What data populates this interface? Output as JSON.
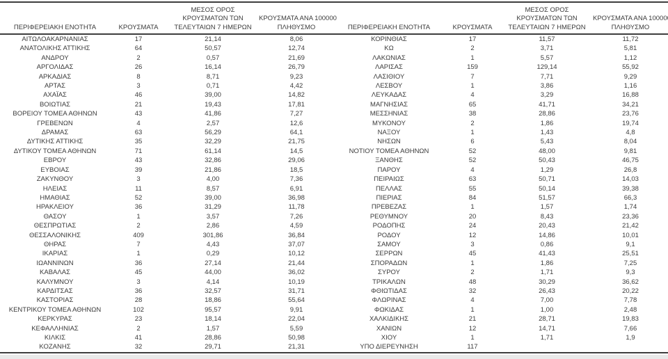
{
  "page": {
    "background": "#ffffff",
    "text_color": "#3b3b3b",
    "rule_color": "#3d3d3d",
    "bottom_strip_color": "#e9e9e9"
  },
  "columns": [
    {
      "id": "region",
      "lines": [
        "ΠΕΡΙΦΕΡΕΙΑΚΗ ΕΝΟΤΗΤΑ"
      ]
    },
    {
      "id": "cases",
      "lines": [
        "ΚΡΟΥΣΜΑΤΑ"
      ]
    },
    {
      "id": "avg7",
      "lines": [
        "ΜΕΣΟΣ ΟΡΟΣ",
        "ΚΡΟΥΣΜΑΤΩΝ ΤΩΝ",
        "ΤΕΛΕΥΤΑΙΩΝ 7 ΗΜΕΡΩΝ"
      ]
    },
    {
      "id": "per100k",
      "lines": [
        "ΚΡΟΥΣΜΑΤΑ ΑΝΑ 100000",
        "ΠΛΗΘΥΣΜΟ"
      ]
    }
  ],
  "tables": [
    {
      "name": "left",
      "rows": [
        [
          "ΑΙΤΩΛΟΑΚΑΡΝΑΝΙΑΣ",
          "17",
          "21,14",
          "8,06"
        ],
        [
          "ΑΝΑΤΟΛΙΚΗΣ ΑΤΤΙΚΗΣ",
          "64",
          "50,57",
          "12,74"
        ],
        [
          "ΑΝΔΡΟΥ",
          "2",
          "0,57",
          "21,69"
        ],
        [
          "ΑΡΓΟΛΙΔΑΣ",
          "26",
          "16,14",
          "26,79"
        ],
        [
          "ΑΡΚΑΔΙΑΣ",
          "8",
          "8,71",
          "9,23"
        ],
        [
          "ΑΡΤΑΣ",
          "3",
          "0,71",
          "4,42"
        ],
        [
          "ΑΧΑΪΑΣ",
          "46",
          "39,00",
          "14,82"
        ],
        [
          "ΒΟΙΩΤΙΑΣ",
          "21",
          "19,43",
          "17,81"
        ],
        [
          "ΒΟΡΕΙΟΥ ΤΟΜΕΑ ΑΘΗΝΩΝ",
          "43",
          "41,86",
          "7,27"
        ],
        [
          "ΓΡΕΒΕΝΩΝ",
          "4",
          "2,57",
          "12,6"
        ],
        [
          "ΔΡΑΜΑΣ",
          "63",
          "56,29",
          "64,1"
        ],
        [
          "ΔΥΤΙΚΗΣ ΑΤΤΙΚΗΣ",
          "35",
          "32,29",
          "21,75"
        ],
        [
          "ΔΥΤΙΚΟΥ ΤΟΜΕΑ ΑΘΗΝΩΝ",
          "71",
          "61,14",
          "14,5"
        ],
        [
          "ΕΒΡΟΥ",
          "43",
          "32,86",
          "29,06"
        ],
        [
          "ΕΥΒΟΙΑΣ",
          "39",
          "21,86",
          "18,5"
        ],
        [
          "ΖΑΚΥΝΘΟΥ",
          "3",
          "4,00",
          "7,36"
        ],
        [
          "ΗΛΕΙΑΣ",
          "11",
          "8,57",
          "6,91"
        ],
        [
          "ΗΜΑΘΙΑΣ",
          "52",
          "39,00",
          "36,98"
        ],
        [
          "ΗΡΑΚΛΕΙΟΥ",
          "36",
          "31,29",
          "11,78"
        ],
        [
          "ΘΑΣΟΥ",
          "1",
          "3,57",
          "7,26"
        ],
        [
          "ΘΕΣΠΡΩΤΙΑΣ",
          "2",
          "2,86",
          "4,59"
        ],
        [
          "ΘΕΣΣΑΛΟΝΙΚΗΣ",
          "409",
          "301,86",
          "36,84"
        ],
        [
          "ΘΗΡΑΣ",
          "7",
          "4,43",
          "37,07"
        ],
        [
          "ΙΚΑΡΙΑΣ",
          "1",
          "0,29",
          "10,12"
        ],
        [
          "ΙΩΑΝΝΙΝΩΝ",
          "36",
          "27,14",
          "21,44"
        ],
        [
          "ΚΑΒΑΛΑΣ",
          "45",
          "44,00",
          "36,02"
        ],
        [
          "ΚΑΛΥΜΝΟΥ",
          "3",
          "4,14",
          "10,19"
        ],
        [
          "ΚΑΡΔΙΤΣΑΣ",
          "36",
          "32,57",
          "31,71"
        ],
        [
          "ΚΑΣΤΟΡΙΑΣ",
          "28",
          "18,86",
          "55,64"
        ],
        [
          "ΚΕΝΤΡΙΚΟΥ ΤΟΜΕΑ ΑΘΗΝΩΝ",
          "102",
          "95,57",
          "9,91"
        ],
        [
          "ΚΕΡΚΥΡΑΣ",
          "23",
          "18,14",
          "22,04"
        ],
        [
          "ΚΕΦΑΛΛΗΝΙΑΣ",
          "2",
          "1,57",
          "5,59"
        ],
        [
          "ΚΙΛΚΙΣ",
          "41",
          "28,86",
          "50,98"
        ],
        [
          "ΚΟΖΑΝΗΣ",
          "32",
          "29,71",
          "21,31"
        ]
      ]
    },
    {
      "name": "right",
      "rows": [
        [
          "ΚΟΡΙΝΘΙΑΣ",
          "17",
          "11,57",
          "11,72"
        ],
        [
          "ΚΩ",
          "2",
          "3,71",
          "5,81"
        ],
        [
          "ΛΑΚΩΝΙΑΣ",
          "1",
          "5,57",
          "1,12"
        ],
        [
          "ΛΑΡΙΣΑΣ",
          "159",
          "129,14",
          "55,92"
        ],
        [
          "ΛΑΣΙΘΙΟΥ",
          "7",
          "7,71",
          "9,29"
        ],
        [
          "ΛΕΣΒΟΥ",
          "1",
          "3,86",
          "1,16"
        ],
        [
          "ΛΕΥΚΑΔΑΣ",
          "4",
          "3,29",
          "16,88"
        ],
        [
          "ΜΑΓΝΗΣΙΑΣ",
          "65",
          "41,71",
          "34,21"
        ],
        [
          "ΜΕΣΣΗΝΙΑΣ",
          "38",
          "28,86",
          "23,76"
        ],
        [
          "ΜΥΚΟΝΟΥ",
          "2",
          "1,86",
          "19,74"
        ],
        [
          "ΝΑΞΟΥ",
          "1",
          "1,43",
          "4,8"
        ],
        [
          "ΝΗΣΩΝ",
          "6",
          "5,43",
          "8,04"
        ],
        [
          "ΝΟΤΙΟΥ ΤΟΜΕΑ ΑΘΗΝΩΝ",
          "52",
          "48,00",
          "9,81"
        ],
        [
          "ΞΑΝΘΗΣ",
          "52",
          "50,43",
          "46,75"
        ],
        [
          "ΠΑΡΟΥ",
          "4",
          "1,29",
          "26,8"
        ],
        [
          "ΠΕΙΡΑΙΩΣ",
          "63",
          "50,71",
          "14,03"
        ],
        [
          "ΠΕΛΛΑΣ",
          "55",
          "50,14",
          "39,38"
        ],
        [
          "ΠΙΕΡΙΑΣ",
          "84",
          "51,57",
          "66,3"
        ],
        [
          "ΠΡΕΒΕΖΑΣ",
          "1",
          "1,57",
          "1,74"
        ],
        [
          "ΡΕΘΥΜΝΟΥ",
          "20",
          "8,43",
          "23,36"
        ],
        [
          "ΡΟΔΟΠΗΣ",
          "24",
          "20,43",
          "21,42"
        ],
        [
          "ΡΟΔΟΥ",
          "12",
          "14,86",
          "10,01"
        ],
        [
          "ΣΑΜΟΥ",
          "3",
          "0,86",
          "9,1"
        ],
        [
          "ΣΕΡΡΩΝ",
          "45",
          "41,43",
          "25,51"
        ],
        [
          "ΣΠΟΡΑΔΩΝ",
          "1",
          "1,86",
          "7,25"
        ],
        [
          "ΣΥΡΟΥ",
          "2",
          "1,71",
          "9,3"
        ],
        [
          "ΤΡΙΚΑΛΩΝ",
          "48",
          "30,29",
          "36,62"
        ],
        [
          "ΦΘΙΩΤΙΔΑΣ",
          "32",
          "26,43",
          "20,22"
        ],
        [
          "ΦΛΩΡΙΝΑΣ",
          "4",
          "7,00",
          "7,78"
        ],
        [
          "ΦΩΚΙΔΑΣ",
          "1",
          "1,00",
          "2,48"
        ],
        [
          "ΧΑΛΚΙΔΙΚΗΣ",
          "21",
          "28,71",
          "19,83"
        ],
        [
          "ΧΑΝΙΩΝ",
          "12",
          "14,71",
          "7,66"
        ],
        [
          "ΧΙΟΥ",
          "1",
          "1,71",
          "1,9"
        ],
        [
          "ΥΠΟ ΔΙΕΡΕΥΝΗΣΗ",
          "117",
          "",
          ""
        ]
      ]
    }
  ]
}
